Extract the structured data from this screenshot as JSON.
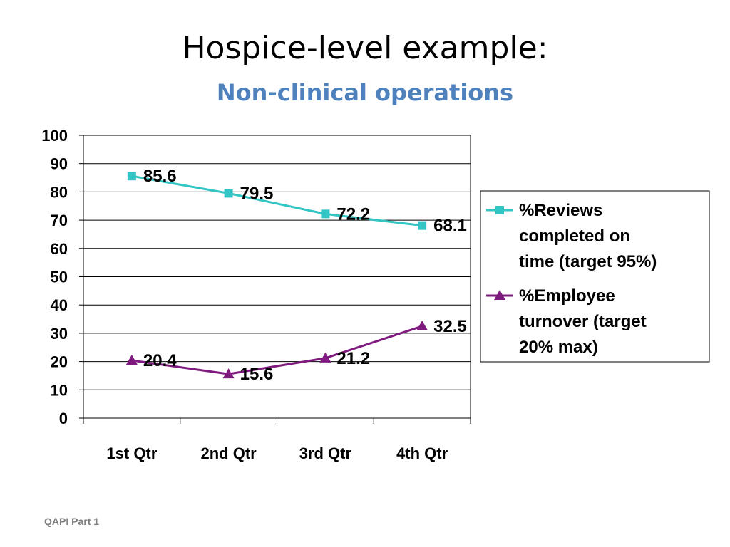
{
  "slide": {
    "title": "Hospice-level example:",
    "subtitle": "Non-clinical operations",
    "subtitle_color": "#4F81BD",
    "footer": "QAPI Part 1"
  },
  "chart_data": {
    "type": "line",
    "categories": [
      "1st Qtr",
      "2nd Qtr",
      "3rd Qtr",
      "4th Qtr"
    ],
    "ylim": [
      0,
      100
    ],
    "yticks": [
      "0",
      "10",
      "20",
      "30",
      "40",
      "50",
      "60",
      "70",
      "80",
      "90",
      "100"
    ],
    "grid": true,
    "legend_position": "right",
    "series": [
      {
        "name": "%Reviews completed on time (target 95%)",
        "legend_lines": [
          "%Reviews",
          "completed on",
          "time (target 95%)"
        ],
        "values": [
          85.6,
          79.5,
          72.2,
          68.1
        ],
        "labels": [
          "85.6",
          "79.5",
          "72.2",
          "68.1"
        ],
        "marker": "square",
        "color": "#33C4C4"
      },
      {
        "name": "%Employee turnover (target 20% max)",
        "legend_lines": [
          "%Employee",
          "turnover (target",
          "20% max)"
        ],
        "values": [
          20.4,
          15.6,
          21.2,
          32.5
        ],
        "labels": [
          "20.4",
          "15.6",
          "21.2",
          "32.5"
        ],
        "marker": "triangle",
        "color": "#7F1A7F"
      }
    ]
  }
}
